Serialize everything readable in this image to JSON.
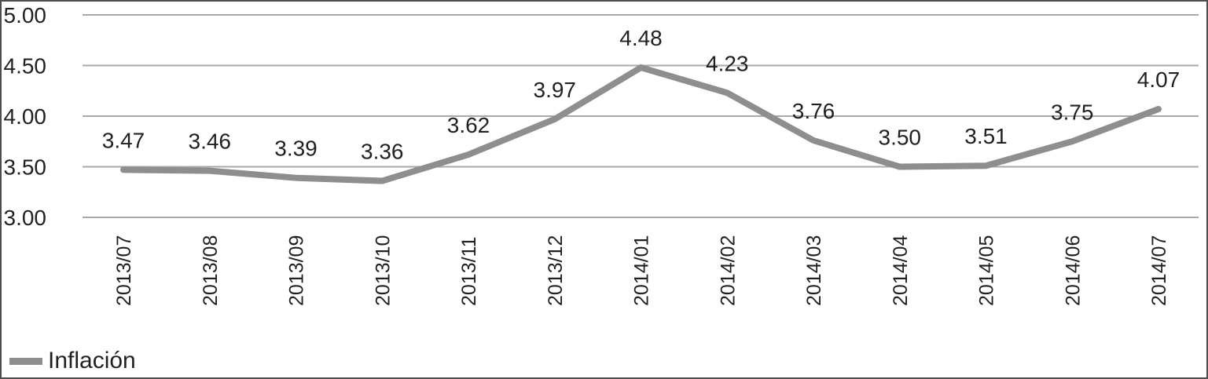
{
  "chart_data": {
    "type": "line",
    "title": "",
    "categories": [
      "2013/07",
      "2013/08",
      "2013/09",
      "2013/10",
      "2013/11",
      "2013/12",
      "2014/01",
      "2014/02",
      "2014/03",
      "2014/04",
      "2014/05",
      "2014/06",
      "2014/07"
    ],
    "series": [
      {
        "name": "Inflación",
        "values": [
          3.47,
          3.46,
          3.39,
          3.36,
          3.62,
          3.97,
          4.48,
          4.23,
          3.76,
          3.5,
          3.51,
          3.75,
          4.07
        ],
        "color": "#8e8e8e"
      }
    ],
    "data_labels": [
      "3.47",
      "3.46",
      "3.39",
      "3.36",
      "3.62",
      "3.97",
      "4.48",
      "4.23",
      "3.76",
      "3.50",
      "3.51",
      "3.75",
      "4.07"
    ],
    "xlabel": "",
    "ylabel": "",
    "ylim": [
      3.0,
      5.0
    ],
    "y_ticks": [
      5.0,
      4.5,
      4.0,
      3.5,
      3.0
    ],
    "y_tick_labels": [
      "5.00",
      "4.50",
      "4.00",
      "3.50",
      "3.00"
    ],
    "grid": "horizontal",
    "legend_position": "bottom-left",
    "colors": {
      "line": "#8e8e8e",
      "gridline": "#a9a9a9",
      "text": "#231f20",
      "frame_border": "#4d4d4d",
      "background": "#ffffff"
    }
  }
}
